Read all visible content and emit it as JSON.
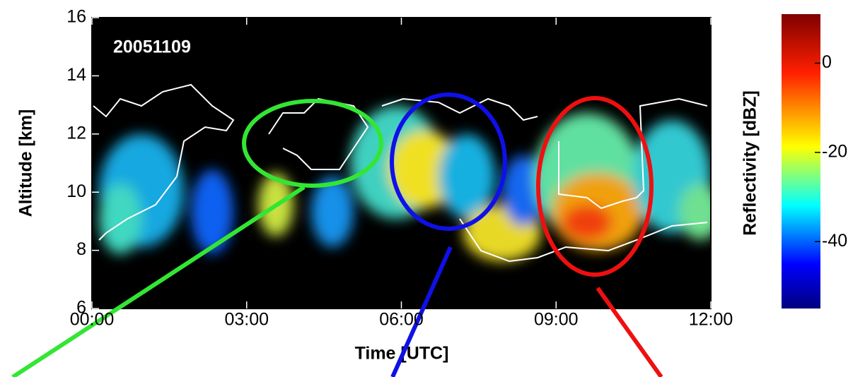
{
  "chart_data": {
    "type": "heatmap",
    "title": "20051109",
    "xlabel": "Time [UTC]",
    "ylabel": "Altitude [km]",
    "xlim": [
      0,
      12
    ],
    "xticks": [
      {
        "value": 0,
        "label": "00:00"
      },
      {
        "value": 3,
        "label": "03:00"
      },
      {
        "value": 6,
        "label": "06:00"
      },
      {
        "value": 9,
        "label": "09:00"
      },
      {
        "value": 12,
        "label": "12:00"
      }
    ],
    "ylim": [
      6,
      16
    ],
    "yticks": [
      6,
      8,
      10,
      12,
      14,
      16
    ],
    "colorbar": {
      "label": "Reflectivity [dBZ]",
      "lim": [
        -55,
        11
      ],
      "ticks": [
        0,
        -20,
        -40
      ]
    }
  }
}
